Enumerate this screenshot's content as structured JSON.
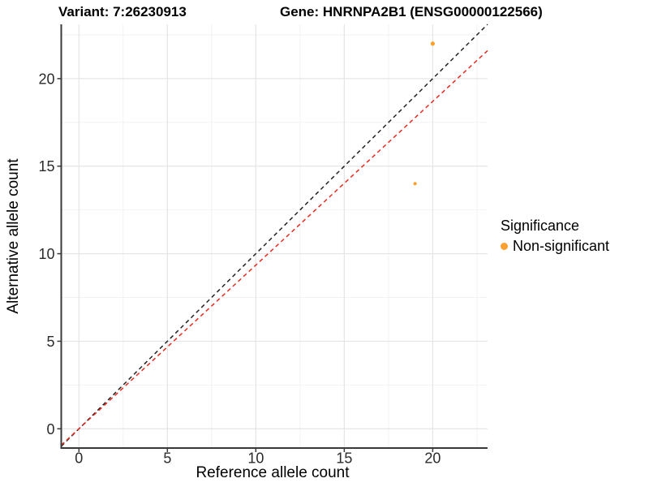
{
  "chart_data": {
    "type": "scatter",
    "title_left": "Variant: 7:26230913",
    "title_right": "Gene: HNRNPA2B1 (ENSG00000122566)",
    "xlabel": "Reference allele count",
    "ylabel": "Alternative allele count",
    "xlim": [
      -1.0,
      23.1
    ],
    "ylim": [
      -1.1,
      23.1
    ],
    "x_ticks": [
      0,
      5,
      10,
      15,
      20
    ],
    "y_ticks": [
      0,
      5,
      10,
      15,
      20
    ],
    "x_minor_ticks": [
      2.5,
      7.5,
      12.5,
      17.5,
      22.5
    ],
    "y_minor_ticks": [
      2.5,
      7.5,
      12.5,
      17.5,
      22.5
    ],
    "grid": true,
    "legend_position": "right",
    "series": [
      {
        "name": "Non-significant",
        "color": "#F9A02E",
        "points": [
          {
            "x": 20,
            "y": 22,
            "r": 2.6
          },
          {
            "x": 19,
            "y": 14,
            "r": 2.1
          }
        ]
      }
    ],
    "lines": [
      {
        "name": "identity-line",
        "slope": 1.0,
        "intercept": 0,
        "color": "#222222",
        "dash": "5,4",
        "width": 1.5
      },
      {
        "name": "fitted-ratio-line",
        "slope": 0.935,
        "intercept": 0,
        "color": "#E8291E",
        "dash": "5,4",
        "width": 1.5
      }
    ],
    "legend": {
      "title": "Significance",
      "items": [
        {
          "label": "Non-significant",
          "color": "#F9A02E"
        }
      ]
    },
    "colors": {
      "background": "#FFFFFF",
      "grid_major": "#E5E5E5",
      "grid_minor": "#F2F2F2",
      "axis_line": "#3A3A3A",
      "tick_text": "#2B2B2B",
      "title_text": "#000000"
    }
  }
}
